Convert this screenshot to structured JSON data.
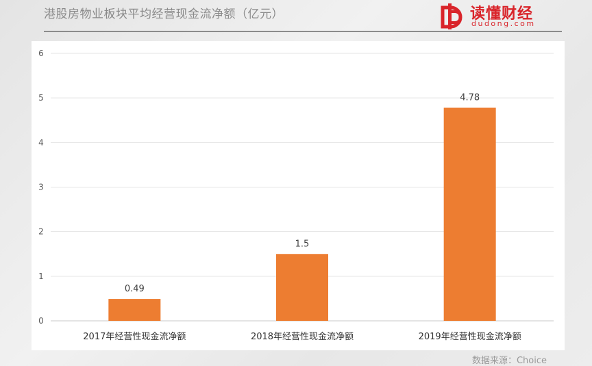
{
  "header": {
    "title": "港股房物业板块平均经营现金流净额（亿元）"
  },
  "logo": {
    "cn_text": "读懂财经",
    "en_text": "dudong.com",
    "icon": "dudong-logo-icon",
    "color": "#d9242a"
  },
  "source": {
    "text": "数据来源：Choice"
  },
  "chart_data": {
    "type": "bar",
    "categories": [
      "2017年经营性现金流净额",
      "2018年经营性现金流净额",
      "2019年经营性现金流净额"
    ],
    "values": [
      0.49,
      1.5,
      4.78
    ],
    "value_labels": [
      "0.49",
      "1.5",
      "4.78"
    ],
    "yticks": [
      0,
      1,
      2,
      3,
      4,
      5,
      6
    ],
    "ylim": [
      0,
      6
    ],
    "grid": true,
    "legend": "none",
    "bar_color": "#ed7d31"
  }
}
